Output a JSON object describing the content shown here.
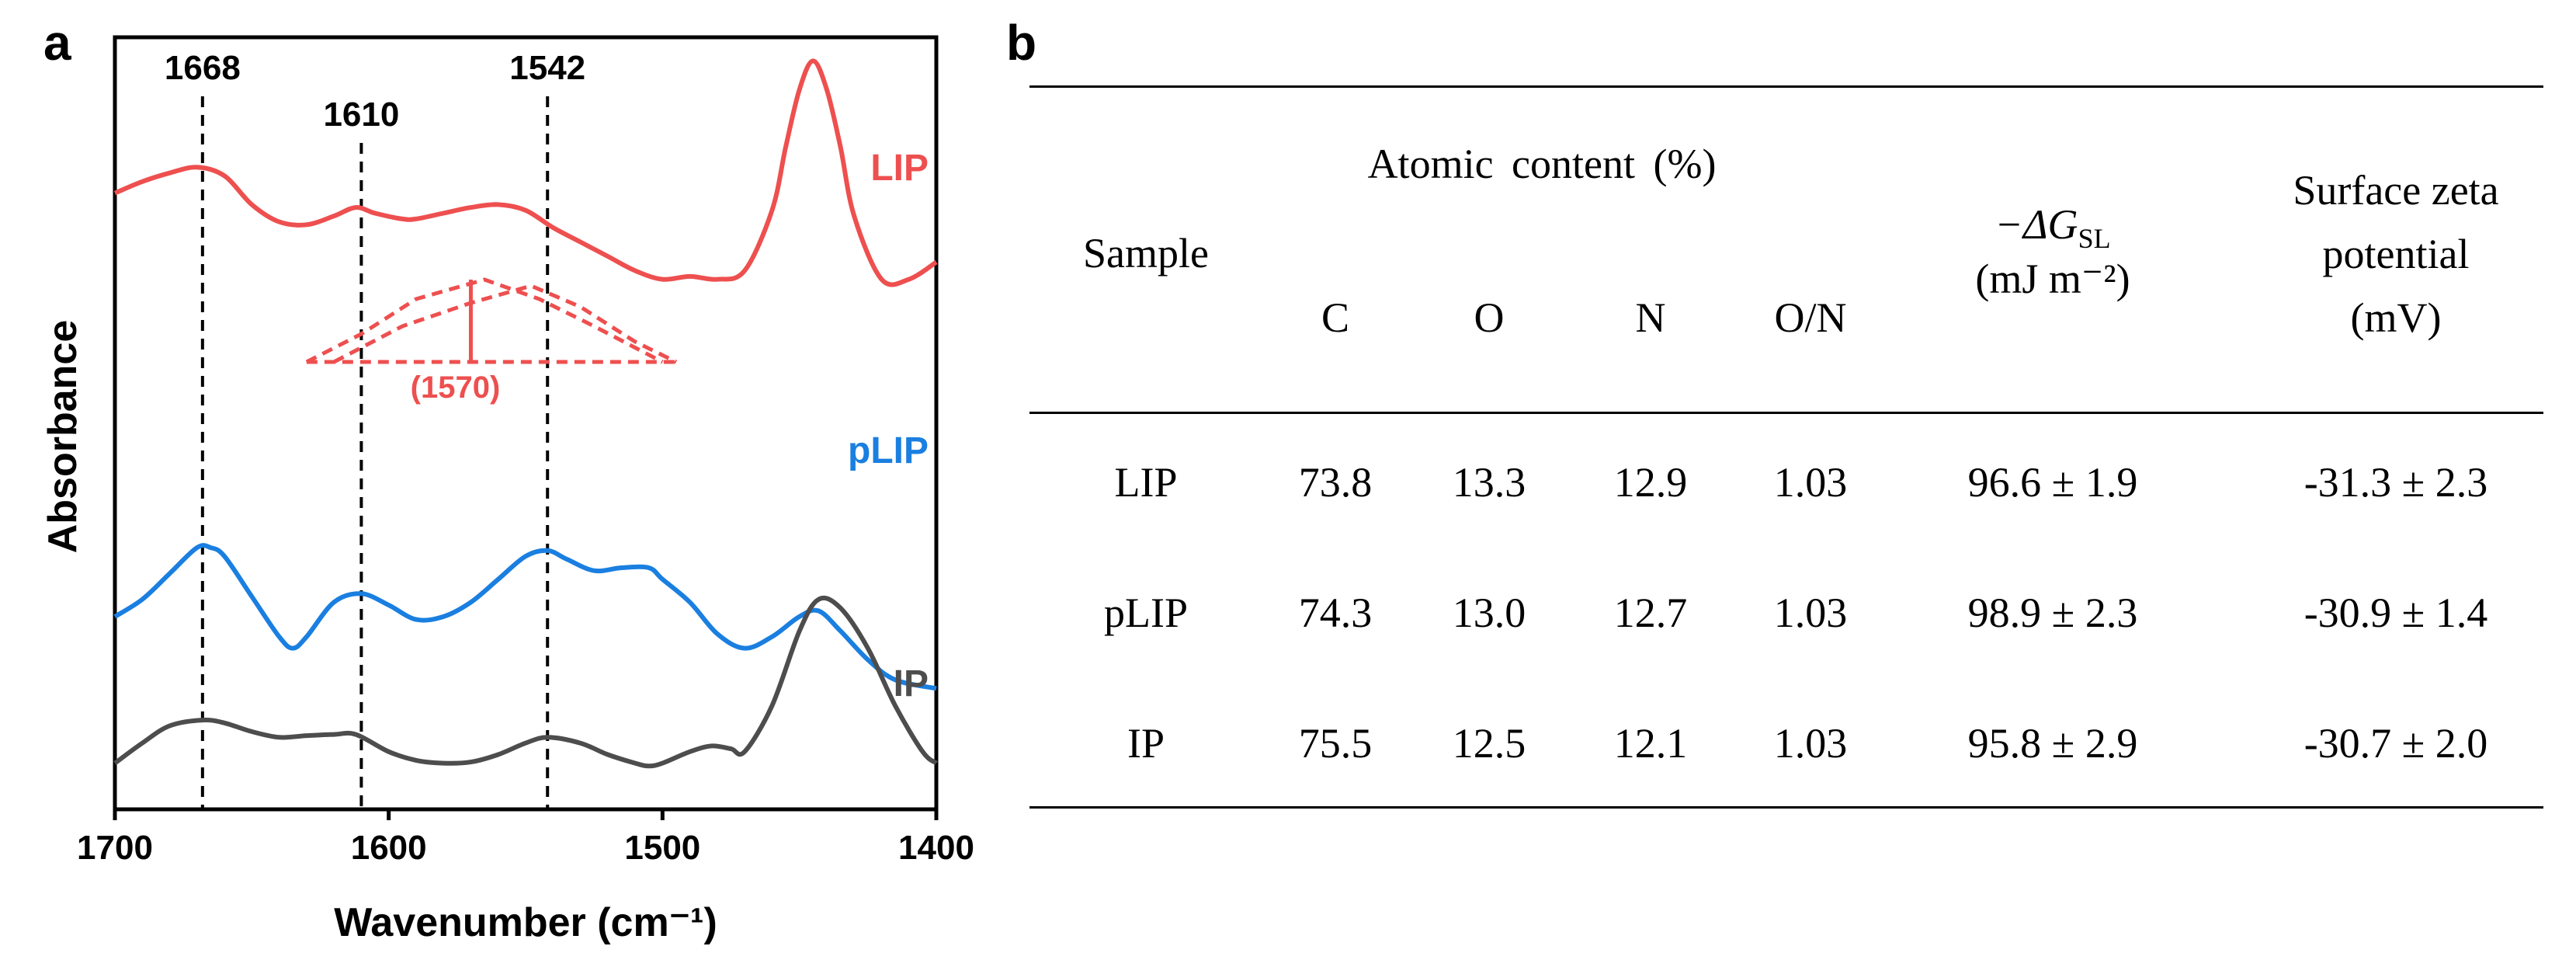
{
  "panel_a": {
    "label": "a",
    "chart_data": {
      "type": "line",
      "title": "",
      "xlabel": "Wavenumber (cm⁻¹)",
      "ylabel": "Absorbance",
      "xlim": [
        1700,
        1400
      ],
      "x_ticks": [
        1700,
        1600,
        1500,
        1400
      ],
      "x_tick_labels": [
        "1700",
        "1600",
        "1500",
        "1400"
      ],
      "reference_lines": [
        {
          "x": 1668,
          "label": "1668"
        },
        {
          "x": 1610,
          "label": "1610"
        },
        {
          "x": 1542,
          "label": "1542"
        }
      ],
      "deconvolution_annotation": {
        "label": "(1570)",
        "peak_x": 1570,
        "color": "#ee4f4f"
      },
      "series": [
        {
          "name": "LIP",
          "color": "#ee4f4f",
          "x": [
            1700,
            1690,
            1680,
            1670,
            1660,
            1650,
            1640,
            1630,
            1620,
            1612,
            1605,
            1595,
            1590,
            1580,
            1570,
            1560,
            1550,
            1540,
            1530,
            1520,
            1510,
            1500,
            1490,
            1480,
            1470,
            1460,
            1455,
            1450,
            1445,
            1440,
            1435,
            1430,
            1420,
            1410,
            1400
          ],
          "y": [
            6.1,
            6.3,
            6.45,
            6.55,
            6.4,
            5.9,
            5.6,
            5.55,
            5.7,
            5.85,
            5.75,
            5.65,
            5.65,
            5.75,
            5.85,
            5.9,
            5.8,
            5.5,
            5.25,
            5.0,
            4.75,
            4.6,
            4.65,
            4.6,
            4.75,
            5.8,
            6.9,
            7.9,
            8.4,
            7.9,
            6.9,
            5.7,
            4.6,
            4.6,
            4.9
          ]
        },
        {
          "name": "pLIP",
          "color": "#1a7fe0",
          "x": [
            1700,
            1690,
            1680,
            1670,
            1665,
            1660,
            1650,
            1640,
            1635,
            1630,
            1620,
            1610,
            1600,
            1590,
            1580,
            1570,
            1560,
            1550,
            1542,
            1535,
            1525,
            1515,
            1505,
            1500,
            1490,
            1480,
            1470,
            1460,
            1450,
            1443,
            1435,
            1425,
            1415,
            1400
          ],
          "y": [
            2.65,
            2.95,
            3.4,
            3.85,
            3.85,
            3.7,
            3.0,
            2.3,
            2.1,
            2.3,
            2.9,
            3.05,
            2.85,
            2.6,
            2.65,
            2.9,
            3.3,
            3.7,
            3.8,
            3.65,
            3.45,
            3.5,
            3.5,
            3.3,
            2.9,
            2.35,
            2.1,
            2.3,
            2.65,
            2.75,
            2.4,
            1.9,
            1.55,
            1.4
          ]
        },
        {
          "name": "IP",
          "color": "#4d4d4d",
          "x": [
            1700,
            1690,
            1680,
            1668,
            1660,
            1650,
            1640,
            1630,
            1620,
            1612,
            1600,
            1590,
            1580,
            1570,
            1560,
            1550,
            1542,
            1530,
            1520,
            1510,
            1505,
            1500,
            1490,
            1482,
            1475,
            1470,
            1460,
            1450,
            1443,
            1435,
            1425,
            1415,
            1405,
            1400
          ],
          "y": [
            0.1,
            0.45,
            0.75,
            0.85,
            0.8,
            0.65,
            0.55,
            0.58,
            0.6,
            0.6,
            0.3,
            0.15,
            0.1,
            0.12,
            0.25,
            0.45,
            0.55,
            0.45,
            0.25,
            0.1,
            0.05,
            0.1,
            0.3,
            0.4,
            0.35,
            0.3,
            1.1,
            2.4,
            2.95,
            2.8,
            2.1,
            1.1,
            0.3,
            0.1
          ]
        }
      ]
    }
  },
  "panel_b": {
    "label": "b",
    "headers": {
      "sample": "Sample",
      "atomic_content": "Atomic content (%)",
      "col_c": "C",
      "col_o": "O",
      "col_n": "N",
      "col_on": "O/N",
      "dg_prefix": "−ΔG",
      "dg_sub": "SL",
      "dg_unit": "(mJ m⁻²)",
      "zeta_line1": "Surface zeta",
      "zeta_line2": "potential",
      "zeta_line3": "(mV)"
    },
    "rows": [
      {
        "sample": "LIP",
        "c": "73.8",
        "o": "13.3",
        "n": "12.9",
        "on": "1.03",
        "dg": "96.6 ± 1.9",
        "zeta": "-31.3 ± 2.3"
      },
      {
        "sample": "pLIP",
        "c": "74.3",
        "o": "13.0",
        "n": "12.7",
        "on": "1.03",
        "dg": "98.9 ± 2.3",
        "zeta": "-30.9 ± 1.4"
      },
      {
        "sample": "IP",
        "c": "75.5",
        "o": "12.5",
        "n": "12.1",
        "on": "1.03",
        "dg": "95.8 ± 2.9",
        "zeta": "-30.7 ± 2.0"
      }
    ]
  }
}
